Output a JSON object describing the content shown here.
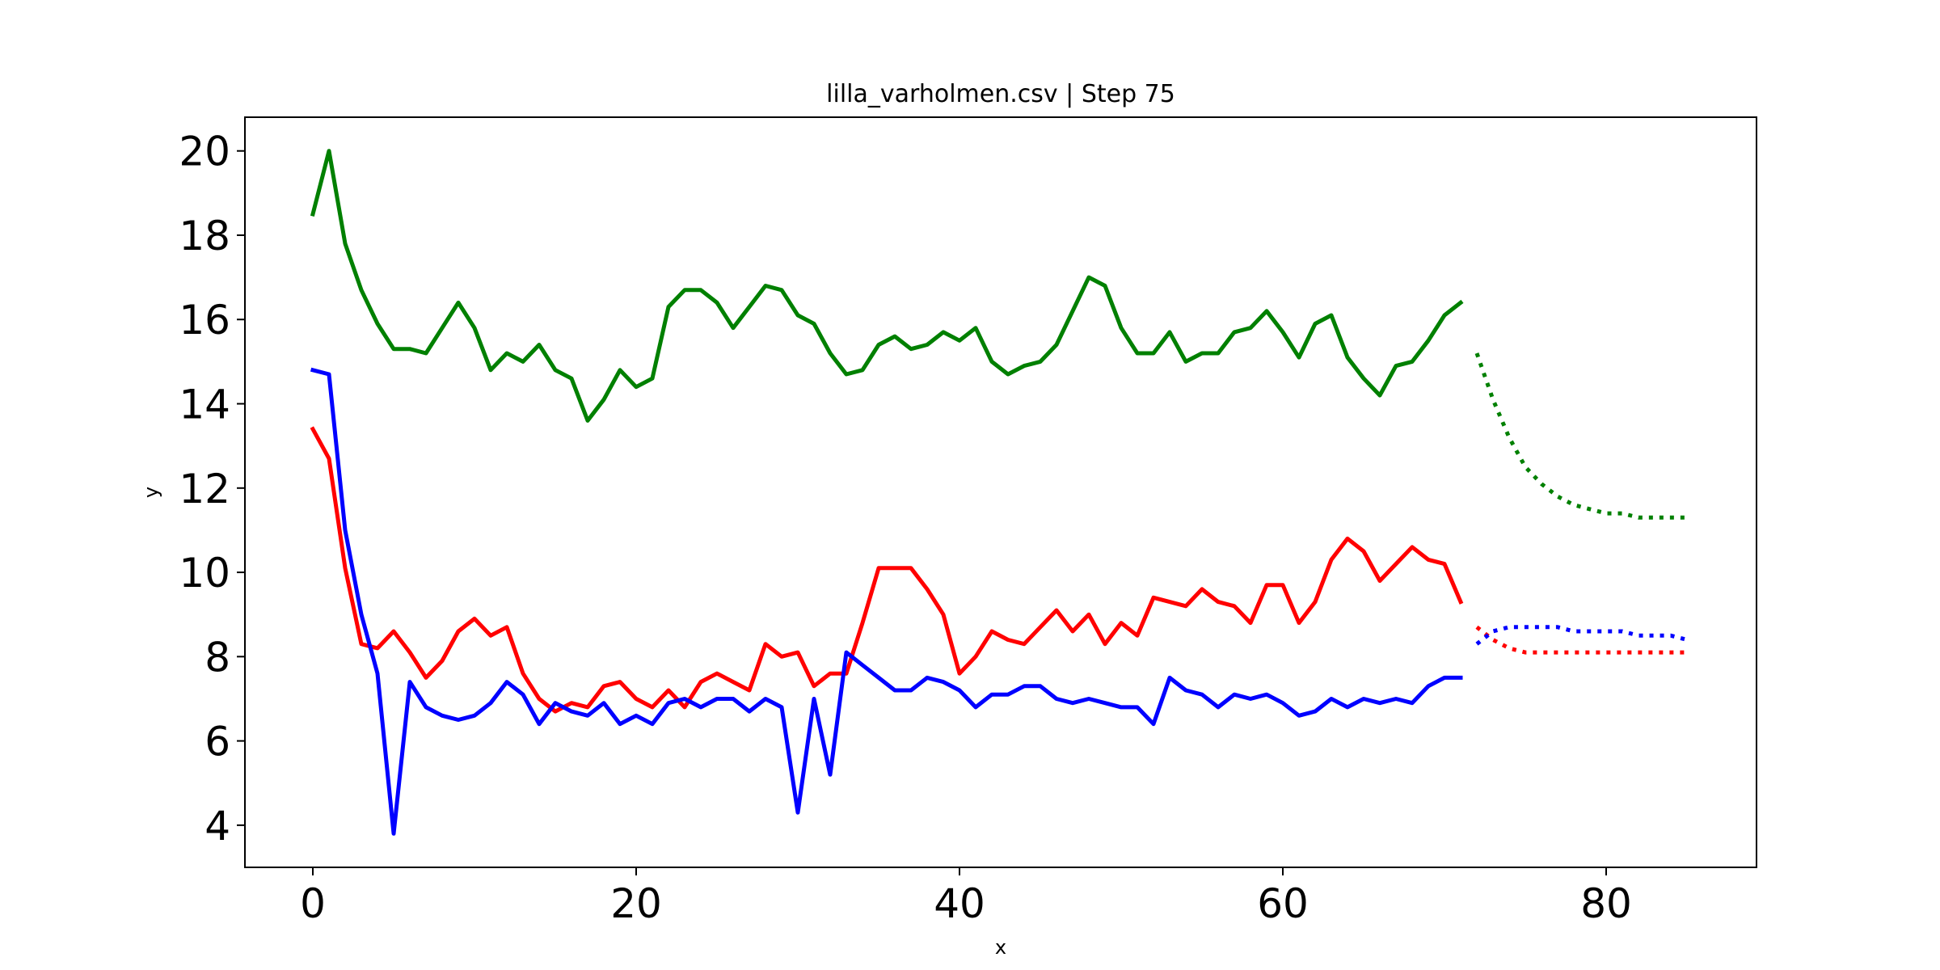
{
  "chart_data": {
    "type": "line",
    "title": "lilla_varholmen.csv | Step 75",
    "xlabel": "x",
    "ylabel": "y",
    "xlim": [
      -4.2,
      89.3
    ],
    "ylim": [
      3.0,
      20.8
    ],
    "xticks": [
      0,
      20,
      40,
      60,
      80
    ],
    "yticks": [
      4,
      6,
      8,
      10,
      12,
      14,
      16,
      18,
      20
    ],
    "grid": false,
    "legend": "none",
    "series": [
      {
        "color": "#008000",
        "style": "solid",
        "x_start": 0,
        "values": [
          18.5,
          20.0,
          17.8,
          16.7,
          15.9,
          15.3,
          15.3,
          15.2,
          15.8,
          16.4,
          15.8,
          14.8,
          15.2,
          15.0,
          15.4,
          14.8,
          14.6,
          13.6,
          14.1,
          14.8,
          14.4,
          14.6,
          16.3,
          16.7,
          16.7,
          16.4,
          15.8,
          16.3,
          16.8,
          16.7,
          16.1,
          15.9,
          15.2,
          14.7,
          14.8,
          15.4,
          15.6,
          15.3,
          15.4,
          15.7,
          15.5,
          15.8,
          15.0,
          14.7,
          14.9,
          15.0,
          15.4,
          16.2,
          17.0,
          16.8,
          15.8,
          15.2,
          15.2,
          15.7,
          15.0,
          15.2,
          15.2,
          15.7,
          15.8,
          16.2,
          15.7,
          15.1,
          15.9,
          16.1,
          15.1,
          14.6,
          14.2,
          14.9,
          15.0,
          15.5,
          16.1,
          16.4
        ]
      },
      {
        "color": "#ff0000",
        "style": "solid",
        "x_start": 0,
        "values": [
          13.4,
          12.7,
          10.1,
          8.3,
          8.2,
          8.6,
          8.1,
          7.5,
          7.9,
          8.6,
          8.9,
          8.5,
          8.7,
          7.6,
          7.0,
          6.7,
          6.9,
          6.8,
          7.3,
          7.4,
          7.0,
          6.8,
          7.2,
          6.8,
          7.4,
          7.6,
          7.4,
          7.2,
          8.3,
          8.0,
          8.1,
          7.3,
          7.6,
          7.6,
          8.8,
          10.1,
          10.1,
          10.1,
          9.6,
          9.0,
          7.6,
          8.0,
          8.6,
          8.4,
          8.3,
          8.7,
          9.1,
          8.6,
          9.0,
          8.3,
          8.8,
          8.5,
          9.4,
          9.3,
          9.2,
          9.6,
          9.3,
          9.2,
          8.8,
          9.7,
          9.7,
          8.8,
          9.3,
          10.3,
          10.8,
          10.5,
          9.8,
          10.2,
          10.6,
          10.3,
          10.2,
          9.3
        ]
      },
      {
        "color": "#0000ff",
        "style": "solid",
        "x_start": 0,
        "values": [
          14.8,
          14.7,
          11.0,
          9.0,
          7.6,
          3.8,
          7.4,
          6.8,
          6.6,
          6.5,
          6.6,
          6.9,
          7.4,
          7.1,
          6.4,
          6.9,
          6.7,
          6.6,
          6.9,
          6.4,
          6.6,
          6.4,
          6.9,
          7.0,
          6.8,
          7.0,
          7.0,
          6.7,
          7.0,
          6.8,
          4.3,
          7.0,
          5.2,
          8.1,
          7.8,
          7.5,
          7.2,
          7.2,
          7.5,
          7.4,
          7.2,
          6.8,
          7.1,
          7.1,
          7.3,
          7.3,
          7.0,
          6.9,
          7.0,
          6.9,
          6.8,
          6.8,
          6.4,
          7.5,
          7.2,
          7.1,
          6.8,
          7.1,
          7.0,
          7.1,
          6.9,
          6.6,
          6.7,
          7.0,
          6.8,
          7.0,
          6.9,
          7.0,
          6.9,
          7.3,
          7.5,
          7.5
        ]
      },
      {
        "color": "#008000",
        "style": "dotted",
        "x_start": 72,
        "values": [
          15.2,
          14.1,
          13.2,
          12.5,
          12.1,
          11.8,
          11.6,
          11.5,
          11.4,
          11.4,
          11.3,
          11.3,
          11.3,
          11.3
        ]
      },
      {
        "color": "#ff0000",
        "style": "dotted",
        "x_start": 72,
        "values": [
          8.7,
          8.4,
          8.2,
          8.1,
          8.1,
          8.1,
          8.1,
          8.1,
          8.1,
          8.1,
          8.1,
          8.1,
          8.1,
          8.1
        ]
      },
      {
        "color": "#0000ff",
        "style": "dotted",
        "x_start": 72,
        "values": [
          8.3,
          8.6,
          8.7,
          8.7,
          8.7,
          8.7,
          8.6,
          8.6,
          8.6,
          8.6,
          8.5,
          8.5,
          8.5,
          8.4
        ]
      }
    ]
  }
}
